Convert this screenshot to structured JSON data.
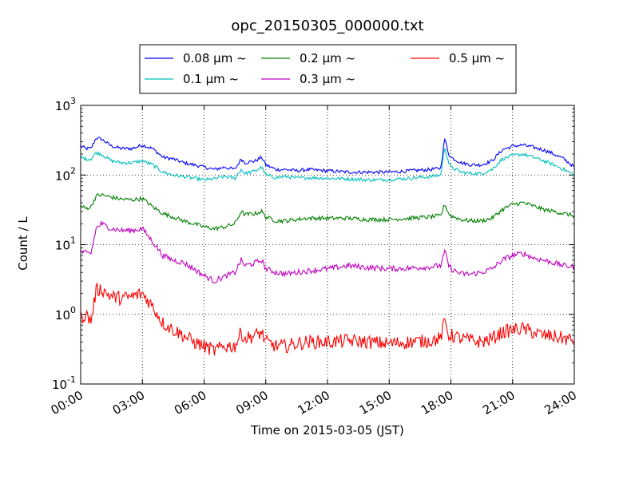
{
  "chart_data": {
    "type": "line",
    "title": "opc_20150305_000000.txt",
    "xlabel": "Time on 2015-03-05 (JST)",
    "ylabel": "Count / L",
    "yscale": "log",
    "ylim": [
      0.1,
      1000
    ],
    "xlim_hours": [
      0,
      24
    ],
    "grid": true,
    "legend_position": "top",
    "x_tick_labels": [
      "00:00",
      "03:00",
      "06:00",
      "09:00",
      "12:00",
      "15:00",
      "18:00",
      "21:00",
      "24:00"
    ],
    "y_tick_labels": [
      {
        "base": "10",
        "exp": "-1"
      },
      {
        "base": "10",
        "exp": "0"
      },
      {
        "base": "10",
        "exp": "1"
      },
      {
        "base": "10",
        "exp": "2"
      },
      {
        "base": "10",
        "exp": "3"
      }
    ],
    "x_hours": [
      0,
      0.25,
      0.5,
      0.75,
      1,
      1.5,
      2,
      2.5,
      3,
      3.5,
      4,
      4.5,
      5,
      5.5,
      6,
      6.5,
      7,
      7.5,
      7.8,
      8,
      8.5,
      8.8,
      9,
      9.5,
      10,
      10.5,
      11,
      12,
      13,
      14,
      15,
      16,
      17,
      17.5,
      17.7,
      17.9,
      18,
      18.5,
      19,
      19.5,
      20,
      20.5,
      21,
      21.5,
      22,
      22.5,
      23,
      23.5,
      24
    ],
    "series": [
      {
        "name": "0.08 μm ~",
        "color": "#0000ff",
        "values": [
          260,
          240,
          240,
          340,
          330,
          260,
          240,
          240,
          270,
          240,
          180,
          170,
          150,
          140,
          130,
          120,
          130,
          120,
          170,
          150,
          160,
          180,
          140,
          120,
          120,
          115,
          120,
          115,
          110,
          110,
          110,
          115,
          120,
          125,
          330,
          200,
          180,
          150,
          140,
          140,
          160,
          230,
          260,
          270,
          250,
          230,
          200,
          170,
          130
        ]
      },
      {
        "name": "0.1 μm ~",
        "color": "#00bfbf",
        "values": [
          180,
          170,
          170,
          210,
          200,
          160,
          150,
          150,
          160,
          140,
          110,
          100,
          95,
          90,
          85,
          88,
          95,
          90,
          120,
          105,
          115,
          130,
          100,
          92,
          95,
          90,
          92,
          90,
          88,
          85,
          86,
          90,
          95,
          100,
          250,
          150,
          130,
          110,
          105,
          105,
          120,
          170,
          190,
          200,
          180,
          160,
          140,
          120,
          100
        ]
      },
      {
        "name": "0.2 μm ~",
        "color": "#008000",
        "values": [
          36,
          33,
          35,
          50,
          52,
          48,
          45,
          44,
          46,
          35,
          28,
          25,
          22,
          20,
          18,
          17,
          18,
          20,
          30,
          27,
          28,
          30,
          25,
          22,
          22,
          23,
          24,
          24,
          24,
          23,
          23,
          24,
          25,
          26,
          38,
          28,
          26,
          23,
          22,
          22,
          24,
          32,
          38,
          40,
          36,
          32,
          30,
          28,
          26
        ]
      },
      {
        "name": "0.3 μm ~",
        "color": "#bf00bf",
        "values": [
          8,
          7.5,
          7.5,
          17,
          20,
          17,
          16,
          16,
          17,
          11,
          7,
          6,
          5.5,
          4.5,
          3.6,
          3,
          3.5,
          4,
          6,
          5,
          5.5,
          6,
          4.5,
          4,
          3.8,
          4,
          4.2,
          4.5,
          5,
          4.7,
          4.5,
          4.6,
          4.8,
          5,
          8,
          5,
          4.5,
          3.8,
          3.8,
          4,
          4.5,
          6,
          7,
          7.5,
          6.5,
          6,
          5.5,
          5,
          4.8
        ]
      },
      {
        "name": "0.5 μm ~",
        "color": "#ff0000",
        "values": [
          0.9,
          1,
          0.8,
          2.2,
          2.3,
          1.8,
          1.7,
          1.8,
          2,
          1.3,
          0.75,
          0.6,
          0.5,
          0.4,
          0.35,
          0.3,
          0.35,
          0.35,
          0.55,
          0.45,
          0.5,
          0.55,
          0.4,
          0.35,
          0.35,
          0.38,
          0.4,
          0.4,
          0.42,
          0.4,
          0.38,
          0.4,
          0.42,
          0.45,
          0.8,
          0.5,
          0.5,
          0.45,
          0.42,
          0.4,
          0.45,
          0.55,
          0.6,
          0.62,
          0.55,
          0.5,
          0.48,
          0.45,
          0.42
        ]
      }
    ]
  }
}
